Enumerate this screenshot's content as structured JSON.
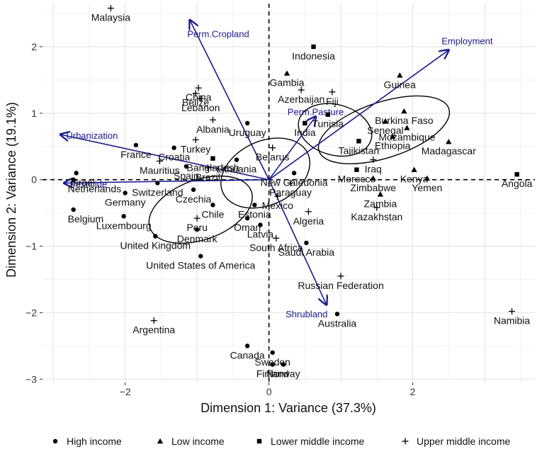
{
  "chart_data": {
    "type": "scatter",
    "title": "",
    "xlabel": "Dimension 1: Variance (37.3%)",
    "ylabel": "Dimension 2: Variance (19.1%)",
    "xlim": [
      -3.15,
      3.7
    ],
    "ylim": [
      -3.05,
      2.65
    ],
    "x_ticks": [
      -2,
      0,
      2
    ],
    "y_ticks": [
      -3,
      -2,
      -1,
      0,
      1,
      2
    ],
    "grid": true,
    "reference_lines": {
      "x": 0,
      "y": 0,
      "style": "dashed"
    },
    "legend_position": "bottom",
    "colors": {
      "points": "#000000",
      "vectors": "#1a1a8c",
      "ellipses": "#000000",
      "grid_major": "#e6e6e6",
      "grid_minor": "#f2f2f2"
    },
    "legend": [
      {
        "label": "High income",
        "shape": "circle"
      },
      {
        "label": "Low income",
        "shape": "triangle"
      },
      {
        "label": "Lower middle income",
        "shape": "square"
      },
      {
        "label": "Upper middle income",
        "shape": "plus"
      }
    ],
    "points": [
      {
        "name": "Malaysia",
        "x": -2.2,
        "y": 2.58,
        "group": "Upper middle income"
      },
      {
        "name": "Indonesia",
        "x": 0.62,
        "y": 2.0,
        "group": "Lower middle income"
      },
      {
        "name": "Gambia",
        "x": 0.25,
        "y": 1.6,
        "group": "Low income"
      },
      {
        "name": "Guinea",
        "x": 1.82,
        "y": 1.57,
        "group": "Low income"
      },
      {
        "name": "China",
        "x": -0.98,
        "y": 1.38,
        "group": "Upper middle income"
      },
      {
        "name": "Azerbaijan",
        "x": 0.45,
        "y": 1.35,
        "group": "Upper middle income"
      },
      {
        "name": "Fiji",
        "x": 0.88,
        "y": 1.32,
        "group": "Upper middle income"
      },
      {
        "name": "Belize",
        "x": -1.02,
        "y": 1.3,
        "group": "Upper middle income"
      },
      {
        "name": "Lebanon",
        "x": -0.95,
        "y": 1.22,
        "group": "Upper middle income"
      },
      {
        "name": "Burkina Faso",
        "x": 1.88,
        "y": 1.03,
        "group": "Low income"
      },
      {
        "name": "Tunisia",
        "x": 0.82,
        "y": 0.98,
        "group": "Lower middle income"
      },
      {
        "name": "Albania",
        "x": -0.78,
        "y": 0.9,
        "group": "Upper middle income"
      },
      {
        "name": "Uruguay",
        "x": -0.3,
        "y": 0.85,
        "group": "High income"
      },
      {
        "name": "Senegal",
        "x": 1.62,
        "y": 0.88,
        "group": "Low income"
      },
      {
        "name": "India",
        "x": 0.5,
        "y": 0.85,
        "group": "Lower middle income"
      },
      {
        "name": "Mozambique",
        "x": 1.92,
        "y": 0.78,
        "group": "Low income"
      },
      {
        "name": "Turkey",
        "x": -1.02,
        "y": 0.6,
        "group": "Upper middle income"
      },
      {
        "name": "Tajikistan",
        "x": 1.25,
        "y": 0.58,
        "group": "Lower middle income"
      },
      {
        "name": "Madagascar",
        "x": 2.5,
        "y": 0.57,
        "group": "Low income"
      },
      {
        "name": "Ethiopia",
        "x": 1.72,
        "y": 0.65,
        "group": "Low income"
      },
      {
        "name": "Belarus",
        "x": 0.05,
        "y": 0.48,
        "group": "Upper middle income"
      },
      {
        "name": "France",
        "x": -1.85,
        "y": 0.52,
        "group": "High income"
      },
      {
        "name": "Croatia",
        "x": -1.32,
        "y": 0.48,
        "group": "High income"
      },
      {
        "name": "Bangladesh",
        "x": -0.78,
        "y": 0.32,
        "group": "Lower middle income"
      },
      {
        "name": "Iraq",
        "x": 1.45,
        "y": 0.3,
        "group": "Upper middle income"
      },
      {
        "name": "Morocco",
        "x": 1.22,
        "y": 0.15,
        "group": "Lower middle income"
      },
      {
        "name": "Kenya",
        "x": 2.02,
        "y": 0.15,
        "group": "Low income"
      },
      {
        "name": "Mauritius",
        "x": -1.52,
        "y": 0.28,
        "group": "Upper middle income"
      },
      {
        "name": "Spain",
        "x": -1.15,
        "y": 0.2,
        "group": "High income"
      },
      {
        "name": "Brazil",
        "x": -0.85,
        "y": 0.18,
        "group": "Upper middle income"
      },
      {
        "name": "Lithuania",
        "x": -0.45,
        "y": 0.3,
        "group": "High income"
      },
      {
        "name": "Israel",
        "x": -2.68,
        "y": 0.1,
        "group": "High income"
      },
      {
        "name": "Netherlands",
        "x": -2.72,
        "y": 0.0,
        "group": "High income"
      },
      {
        "name": "Switzerland",
        "x": -1.55,
        "y": -0.05,
        "group": "High income"
      },
      {
        "name": "New Caledonia",
        "x": 0.35,
        "y": 0.1,
        "group": "High income"
      },
      {
        "name": "Paraguay",
        "x": 0.3,
        "y": -0.05,
        "group": "Upper middle income"
      },
      {
        "name": "Zimbabwe",
        "x": 1.45,
        "y": 0.02,
        "group": "Low income"
      },
      {
        "name": "Yemen",
        "x": 2.2,
        "y": 0.02,
        "group": "Low income"
      },
      {
        "name": "Angola",
        "x": 3.45,
        "y": 0.08,
        "group": "Lower middle income"
      },
      {
        "name": "Czechia",
        "x": -1.05,
        "y": -0.15,
        "group": "High income"
      },
      {
        "name": "Germany",
        "x": -2.0,
        "y": -0.2,
        "group": "High income"
      },
      {
        "name": "Zambia",
        "x": 1.55,
        "y": -0.22,
        "group": "Low income"
      },
      {
        "name": "Mexico",
        "x": 0.12,
        "y": -0.25,
        "group": "Upper middle income"
      },
      {
        "name": "Belgium",
        "x": -2.72,
        "y": -0.45,
        "group": "High income"
      },
      {
        "name": "Chile",
        "x": -0.78,
        "y": -0.38,
        "group": "High income"
      },
      {
        "name": "Estonia",
        "x": -0.2,
        "y": -0.38,
        "group": "High income"
      },
      {
        "name": "Algeria",
        "x": 0.55,
        "y": -0.48,
        "group": "Upper middle income"
      },
      {
        "name": "Kazakhstan",
        "x": 1.5,
        "y": -0.42,
        "group": "Upper middle income"
      },
      {
        "name": "Luxembourg",
        "x": -2.02,
        "y": -0.55,
        "group": "High income"
      },
      {
        "name": "Peru",
        "x": -1.0,
        "y": -0.58,
        "group": "Upper middle income"
      },
      {
        "name": "Oman",
        "x": -0.3,
        "y": -0.58,
        "group": "High income"
      },
      {
        "name": "Latvia",
        "x": -0.12,
        "y": -0.68,
        "group": "High income"
      },
      {
        "name": "United Kingdom",
        "x": -1.58,
        "y": -0.85,
        "group": "High income"
      },
      {
        "name": "Denmark",
        "x": -1.0,
        "y": -0.75,
        "group": "High income"
      },
      {
        "name": "South Africa",
        "x": 0.1,
        "y": -0.88,
        "group": "Upper middle income"
      },
      {
        "name": "Saudi Arabia",
        "x": 0.52,
        "y": -0.95,
        "group": "High income"
      },
      {
        "name": "United States of America",
        "x": -0.95,
        "y": -1.15,
        "group": "High income"
      },
      {
        "name": "Russian Federation",
        "x": 1.0,
        "y": -1.45,
        "group": "Upper middle income"
      },
      {
        "name": "Australia",
        "x": 0.95,
        "y": -2.02,
        "group": "High income"
      },
      {
        "name": "Namibia",
        "x": 3.38,
        "y": -1.98,
        "group": "Upper middle income"
      },
      {
        "name": "Argentina",
        "x": -1.6,
        "y": -2.12,
        "group": "Upper middle income"
      },
      {
        "name": "Canada",
        "x": -0.3,
        "y": -2.5,
        "group": "High income"
      },
      {
        "name": "Sweden",
        "x": 0.05,
        "y": -2.6,
        "group": "High income"
      },
      {
        "name": "Finland",
        "x": 0.05,
        "y": -2.78,
        "group": "High income"
      },
      {
        "name": "Norway",
        "x": 0.2,
        "y": -2.78,
        "group": "High income"
      }
    ],
    "vectors": [
      {
        "name": "Perm.Cropland",
        "x": -1.1,
        "y": 2.4
      },
      {
        "name": "Employment",
        "x": 2.5,
        "y": 1.95
      },
      {
        "name": "Perm.Pasture",
        "x": 0.65,
        "y": 0.95
      },
      {
        "name": "Urbanization",
        "x": -2.9,
        "y": 0.68
      },
      {
        "name": "Pesticide",
        "x": -2.85,
        "y": -0.05
      },
      {
        "name": "Shrubland",
        "x": 0.8,
        "y": -1.88
      }
    ],
    "ellipses": [
      {
        "group": "High income",
        "cx": -0.95,
        "cy": -0.45,
        "rx": 0.75,
        "ry": 0.45,
        "angle": -20
      },
      {
        "group": "Low income",
        "cx": 1.6,
        "cy": 0.75,
        "rx": 0.95,
        "ry": 0.42,
        "angle": -18
      },
      {
        "group": "Lower middle income",
        "cx": 0.92,
        "cy": 0.75,
        "rx": 0.52,
        "ry": 0.38,
        "angle": 15
      },
      {
        "group": "Upper middle income",
        "cx": -0.05,
        "cy": 0.1,
        "rx": 0.65,
        "ry": 0.48,
        "angle": -25
      }
    ]
  }
}
